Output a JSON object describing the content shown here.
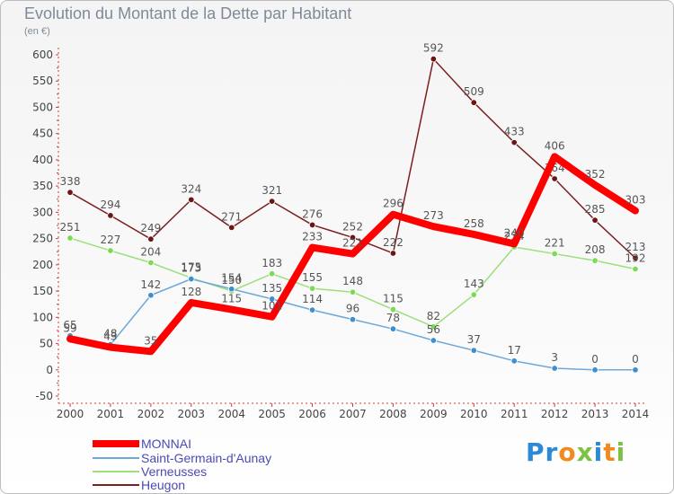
{
  "chart_data": {
    "type": "line",
    "title": "Evolution du Montant de la Dette par Habitant",
    "subtitle": "(en €)",
    "xlabel": "",
    "ylabel": "",
    "ylim": [
      -50,
      600
    ],
    "y_ticks": [
      -50,
      0,
      50,
      100,
      150,
      200,
      250,
      300,
      350,
      400,
      450,
      500,
      550,
      600
    ],
    "categories": [
      "2000",
      "2001",
      "2002",
      "2003",
      "2004",
      "2005",
      "2006",
      "2007",
      "2008",
      "2009",
      "2010",
      "2011",
      "2012",
      "2013",
      "2014"
    ],
    "grid": false,
    "legend_position": "bottom-left",
    "series": [
      {
        "name": "Heugon",
        "color": "#7b1f1f",
        "values": [
          338,
          294,
          249,
          324,
          271,
          321,
          276,
          252,
          222,
          592,
          509,
          433,
          364,
          285,
          213
        ]
      },
      {
        "name": "Verneusses",
        "color": "#9be07a",
        "values": [
          251,
          227,
          204,
          175,
          150,
          183,
          155,
          148,
          115,
          82,
          143,
          234,
          221,
          208,
          192
        ]
      },
      {
        "name": "Saint-Germain-d'Aunay",
        "color": "#6da8d8",
        "values": [
          65,
          48,
          142,
          173,
          154,
          135,
          114,
          96,
          78,
          56,
          37,
          17,
          3,
          0,
          0
        ]
      },
      {
        "name": "MONNAI",
        "color": "#ff0000",
        "values": [
          59,
          43,
          35,
          128,
          115,
          101,
          233,
          221,
          296,
          273,
          258,
          240,
          406,
          352,
          303
        ]
      }
    ],
    "legend": [
      "MONNAI",
      "Saint-Germain-d'Aunay",
      "Verneusses",
      "Heugon"
    ]
  },
  "logo": {
    "letters": [
      "P",
      "r",
      "o",
      "x",
      "i",
      "t",
      "i"
    ],
    "colors": [
      "#2a8ad8",
      "#2a8ad8",
      "#f08a1c",
      "#7cc242",
      "#2a8ad8",
      "#f08a1c",
      "#7cc242"
    ]
  }
}
